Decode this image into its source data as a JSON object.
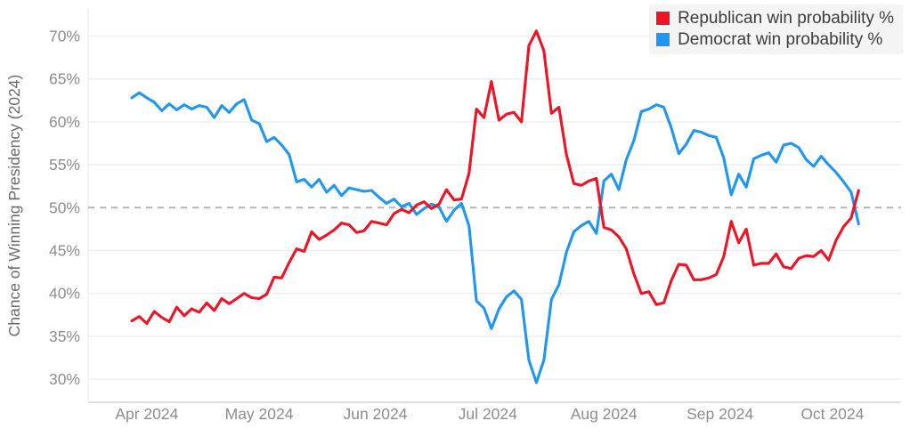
{
  "chart_data": {
    "type": "line",
    "title": "",
    "ylabel": "Chance of Winning Presidency (2024)",
    "grid": "horizontal",
    "legend_position": "top-right",
    "x_unit": "days, day 0 = 2024-03-28",
    "x_start_day": 0,
    "x_step_days": 2,
    "x_tick_days": [
      4,
      34,
      65,
      95,
      126,
      157,
      187
    ],
    "x_tick_labels": [
      "Apr 2024",
      "May 2024",
      "Jun 2024",
      "Jul 2024",
      "Aug 2024",
      "Sep 2024",
      "Oct 2024"
    ],
    "y_tick_values": [
      30,
      35,
      40,
      45,
      50,
      55,
      60,
      65,
      70
    ],
    "y_tick_labels": [
      "30%",
      "35%",
      "40%",
      "45%",
      "50%",
      "55%",
      "60%",
      "65%",
      "70%"
    ],
    "ylim": [
      28,
      72
    ],
    "reference_line": {
      "value": 50,
      "style": "dashed",
      "color": "#b5b5b5"
    },
    "series": [
      {
        "name": "Democrat win probability %",
        "color": "#1f97f0",
        "values": [
          62.8,
          63.4,
          62.8,
          62.3,
          61.3,
          62.1,
          61.4,
          62.0,
          61.5,
          61.9,
          61.7,
          60.5,
          61.9,
          61.1,
          62.1,
          62.6,
          60.2,
          59.8,
          57.7,
          58.2,
          57.3,
          56.2,
          53.0,
          53.3,
          52.4,
          53.3,
          51.8,
          52.6,
          51.4,
          52.3,
          52.1,
          51.9,
          52.0,
          51.2,
          50.5,
          51.0,
          50.1,
          50.5,
          49.2,
          49.9,
          50.4,
          50.1,
          48.4,
          49.7,
          50.5,
          47.9,
          39.1,
          38.3,
          35.9,
          38.2,
          39.6,
          40.3,
          39.3,
          32.2,
          29.6,
          32.2,
          39.3,
          41.0,
          44.8,
          47.2,
          47.9,
          48.4,
          47.0,
          53.1,
          53.9,
          52.1,
          55.6,
          57.8,
          61.2,
          61.5,
          62.0,
          61.7,
          59.3,
          56.3,
          57.4,
          59.0,
          58.8,
          58.4,
          58.2,
          55.8,
          51.5,
          53.9,
          52.4,
          55.7,
          56.1,
          56.4,
          55.3,
          57.3,
          57.5,
          57.0,
          55.6,
          54.8,
          56.0,
          55.0,
          54.1,
          53.0,
          51.8,
          48.1
        ]
      },
      {
        "name": "Republican win probability %",
        "color": "#f01225",
        "values": [
          36.8,
          37.3,
          36.5,
          37.9,
          37.2,
          36.7,
          38.4,
          37.4,
          38.2,
          37.8,
          38.9,
          38.0,
          39.4,
          38.8,
          39.4,
          40.0,
          39.5,
          39.4,
          39.9,
          41.9,
          41.8,
          43.6,
          45.2,
          44.9,
          47.2,
          46.3,
          46.8,
          47.4,
          48.2,
          48.0,
          47.1,
          47.3,
          48.4,
          48.2,
          48.0,
          49.3,
          49.8,
          49.4,
          50.3,
          50.7,
          49.9,
          50.4,
          52.1,
          50.9,
          51.0,
          54.0,
          61.5,
          60.5,
          64.7,
          60.2,
          60.9,
          61.1,
          60.0,
          68.9,
          70.6,
          68.3,
          61.0,
          61.7,
          56.2,
          52.8,
          52.6,
          53.1,
          53.4,
          47.7,
          47.4,
          46.6,
          45.2,
          42.3,
          40.0,
          40.2,
          38.7,
          38.9,
          41.5,
          43.4,
          43.3,
          41.6,
          41.6,
          41.8,
          42.2,
          44.3,
          48.4,
          45.9,
          47.5,
          43.3,
          43.5,
          43.5,
          44.6,
          43.1,
          42.9,
          44.1,
          44.4,
          44.3,
          45.0,
          43.9,
          46.2,
          47.8,
          48.8,
          52.0
        ]
      }
    ]
  },
  "legend": {
    "items": [
      {
        "label": "Republican win probability %",
        "color": "#f01225"
      },
      {
        "label": "Democrat win probability %",
        "color": "#1f97f0"
      }
    ],
    "background": "#f4f4f4",
    "text_color": "#3c3c3c"
  },
  "style_colors": {
    "gridline": "#ededed",
    "axis_line": "#e6e6e6",
    "baseline": "#d6d6d6",
    "tick_text": "#8d8d8d",
    "axis_title_text": "#6b6b6b",
    "background": "#ffffff"
  }
}
